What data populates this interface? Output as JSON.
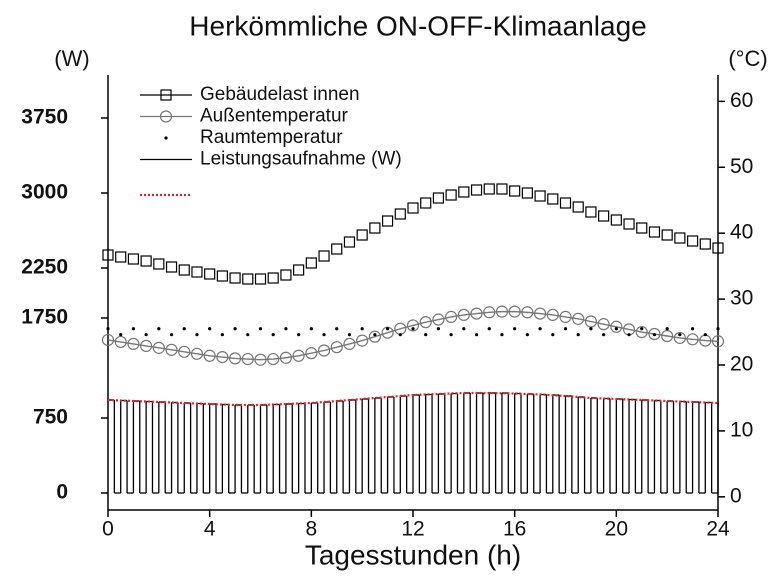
{
  "chart_data": {
    "type": "line",
    "title": "Herkömmliche ON-OFF-Klimaanlage",
    "xlabel": "Tagesstunden (h)",
    "ylabel": "(W)",
    "y2label": "(°C)",
    "xlim": [
      0,
      24
    ],
    "xticks": [
      0,
      4,
      8,
      12,
      16,
      20,
      24
    ],
    "ylim": [
      -170,
      4180
    ],
    "yticks": [
      0,
      750,
      1750,
      2250,
      3000,
      3750
    ],
    "y2lim": [
      -2,
      64
    ],
    "y2ticks": [
      0,
      10,
      20,
      30,
      40,
      50,
      60
    ],
    "legend": "upper left",
    "series": [
      {
        "name": "Gebäudelast innen",
        "color": "#000000",
        "marker": "square",
        "line": false,
        "axis": "y",
        "x": [
          0,
          0.5,
          1,
          1.5,
          2,
          2.5,
          3,
          3.5,
          4,
          4.5,
          5,
          5.5,
          6,
          6.5,
          7,
          7.5,
          8,
          8.5,
          9,
          9.5,
          10,
          10.5,
          11,
          11.5,
          12,
          12.5,
          13,
          13.5,
          14,
          14.5,
          15,
          15.5,
          16,
          16.5,
          17,
          17.5,
          18,
          18.5,
          19,
          19.5,
          20,
          20.5,
          21,
          21.5,
          22,
          22.5,
          23,
          23.5,
          24
        ],
        "values": [
          2380,
          2360,
          2340,
          2320,
          2290,
          2260,
          2230,
          2210,
          2190,
          2170,
          2150,
          2140,
          2140,
          2150,
          2180,
          2230,
          2300,
          2370,
          2440,
          2510,
          2580,
          2650,
          2720,
          2790,
          2850,
          2900,
          2950,
          2980,
          3010,
          3030,
          3040,
          3040,
          3020,
          3000,
          2970,
          2940,
          2900,
          2860,
          2810,
          2770,
          2730,
          2690,
          2650,
          2610,
          2580,
          2550,
          2520,
          2490,
          2450
        ]
      },
      {
        "name": "Außentemperatur",
        "color": "#777777",
        "marker": "circle",
        "line": true,
        "axis": "y2",
        "x": [
          0,
          0.5,
          1,
          1.5,
          2,
          2.5,
          3,
          3.5,
          4,
          4.5,
          5,
          5.5,
          6,
          6.5,
          7,
          7.5,
          8,
          8.5,
          9,
          9.5,
          10,
          10.5,
          11,
          11.5,
          12,
          12.5,
          13,
          13.5,
          14,
          14.5,
          15,
          15.5,
          16,
          16.5,
          17,
          17.5,
          18,
          18.5,
          19,
          19.5,
          20,
          20.5,
          21,
          21.5,
          22,
          22.5,
          23,
          23.5,
          24
        ],
        "values": [
          23.8,
          23.5,
          23.2,
          22.9,
          22.6,
          22.3,
          22.0,
          21.7,
          21.4,
          21.2,
          21.0,
          20.9,
          20.8,
          20.9,
          21.1,
          21.4,
          21.8,
          22.2,
          22.7,
          23.2,
          23.7,
          24.3,
          24.9,
          25.5,
          26.0,
          26.5,
          26.9,
          27.3,
          27.6,
          27.8,
          28.0,
          28.1,
          28.1,
          28.0,
          27.8,
          27.6,
          27.3,
          27.0,
          26.6,
          26.2,
          25.8,
          25.4,
          25.0,
          24.7,
          24.4,
          24.1,
          23.9,
          23.7,
          23.6
        ]
      },
      {
        "name": "Raumtemperatur",
        "color": "#000000",
        "marker": "dot",
        "line": false,
        "axis": "y2",
        "x": [
          0,
          0.5,
          1,
          1.5,
          2,
          2.5,
          3,
          3.5,
          4,
          4.5,
          5,
          5.5,
          6,
          6.5,
          7,
          7.5,
          8,
          8.5,
          9,
          9.5,
          10,
          10.5,
          11,
          11.5,
          12,
          12.5,
          13,
          13.5,
          14,
          14.5,
          15,
          15.5,
          16,
          16.5,
          17,
          17.5,
          18,
          18.5,
          19,
          19.5,
          20,
          20.5,
          21,
          21.5,
          22,
          22.5,
          23,
          23.5,
          24
        ],
        "values": [
          25.5,
          24.6,
          25.5,
          24.6,
          25.5,
          24.6,
          25.5,
          24.6,
          25.5,
          24.6,
          25.5,
          24.6,
          25.5,
          24.6,
          25.5,
          24.6,
          25.5,
          24.6,
          25.5,
          24.6,
          25.5,
          24.6,
          25.5,
          24.6,
          25.5,
          24.6,
          25.5,
          24.6,
          25.5,
          24.6,
          25.5,
          24.6,
          25.5,
          24.6,
          25.5,
          24.6,
          25.5,
          24.6,
          25.5,
          24.6,
          25.5,
          24.6,
          25.5,
          24.6,
          25.5,
          24.6,
          25.5,
          24.6,
          25.5
        ]
      },
      {
        "name": "Leistungsaufnahme (W)",
        "color": "#000000",
        "marker": "step",
        "line": true,
        "axis": "y",
        "x": [
          0,
          0.25,
          0.5,
          0.75,
          1,
          1.25,
          1.5,
          1.75,
          2,
          2.25,
          2.5,
          2.75,
          3,
          3.25,
          3.5,
          3.75,
          4,
          4.25,
          4.5,
          4.75,
          5,
          5.25,
          5.5,
          5.75,
          6,
          6.25,
          6.5,
          6.75,
          7,
          7.25,
          7.5,
          7.75,
          8,
          8.25,
          8.5,
          8.75,
          9,
          9.25,
          9.5,
          9.75,
          10,
          10.25,
          10.5,
          10.75,
          11,
          11.25,
          11.5,
          11.75,
          12,
          12.25,
          12.5,
          12.75,
          13,
          13.25,
          13.5,
          13.75,
          14,
          14.25,
          14.5,
          14.75,
          15,
          15.25,
          15.5,
          15.75,
          16,
          16.25,
          16.5,
          16.75,
          17,
          17.25,
          17.5,
          17.75,
          18,
          18.25,
          18.5,
          18.75,
          19,
          19.25,
          19.5,
          19.75,
          20,
          20.25,
          20.5,
          20.75,
          21,
          21.25,
          21.5,
          21.75,
          22,
          22.25,
          22.5,
          22.75,
          23,
          23.25,
          23.5,
          23.75,
          24
        ],
        "values": [
          930,
          0,
          925,
          0,
          920,
          0,
          915,
          0,
          910,
          0,
          905,
          0,
          900,
          0,
          895,
          0,
          890,
          0,
          885,
          0,
          880,
          0,
          880,
          0,
          880,
          0,
          885,
          0,
          890,
          0,
          895,
          0,
          900,
          0,
          910,
          0,
          920,
          0,
          930,
          0,
          940,
          0,
          950,
          0,
          960,
          0,
          970,
          0,
          980,
          0,
          985,
          0,
          990,
          0,
          995,
          0,
          1000,
          0,
          1000,
          0,
          1000,
          0,
          1000,
          0,
          995,
          0,
          990,
          0,
          985,
          0,
          980,
          0,
          970,
          0,
          960,
          0,
          950,
          0,
          945,
          0,
          940,
          0,
          935,
          0,
          930,
          0,
          925,
          0,
          920,
          0,
          915,
          0,
          910,
          0,
          905,
          0,
          900
        ]
      },
      {
        "color": "#e8202a",
        "marker": "none",
        "line": true,
        "dash": true,
        "axis": "y",
        "x": [
          0,
          1,
          2,
          3,
          4,
          5,
          6,
          7,
          8,
          9,
          10,
          11,
          12,
          13,
          14,
          15,
          16,
          17,
          18,
          19,
          20,
          21,
          22,
          23,
          24
        ],
        "values": [
          930,
          920,
          910,
          900,
          890,
          880,
          880,
          890,
          900,
          920,
          940,
          960,
          980,
          990,
          1000,
          1000,
          995,
          985,
          970,
          950,
          940,
          930,
          920,
          910,
          900
        ]
      }
    ]
  }
}
